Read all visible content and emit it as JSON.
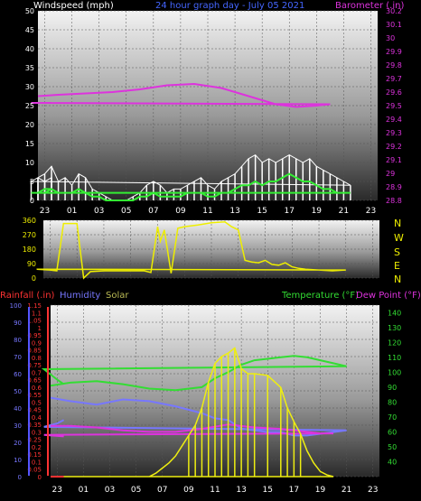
{
  "header": {
    "left_label": "Windspeed (mph)",
    "title": "24 hour graph day - July 05 2021",
    "right_label": "Barometer (.in)"
  },
  "bottom_header": {
    "rain": "Rainfall (.in)",
    "humidity": "Humidity",
    "solar": "Solar",
    "temperature": "Temperature (°F)",
    "dewpoint": "Dew Point (°F)"
  },
  "colors": {
    "windspeed": "#ffffff",
    "gust_avg": "#33ee33",
    "barometer": "#dd33dd",
    "direction": "#eeee00",
    "rain": "#ff3333",
    "humidity": "#7777ff",
    "solar": "#eeee11",
    "temperature": "#33dd33",
    "dewpoint": "#dd33dd",
    "compass": "#eeee00"
  },
  "compass_labels": [
    "N",
    "W",
    "S",
    "E",
    "N"
  ],
  "chart_data": [
    {
      "type": "line",
      "name": "wind-barometer",
      "title": "24 hour graph day - July 05 2021",
      "x_ticks": [
        "23",
        "01",
        "03",
        "05",
        "07",
        "09",
        "11",
        "13",
        "15",
        "17",
        "19",
        "21",
        "23"
      ],
      "ylabel": "Windspeed (mph)",
      "ylim": [
        0,
        50
      ],
      "y_ticks": [
        0,
        5,
        10,
        15,
        20,
        25,
        30,
        35,
        40,
        45,
        50
      ],
      "y2label": "Barometer (.in)",
      "y2lim": [
        28.8,
        30.2
      ],
      "y2_ticks": [
        "28.8",
        "28.9",
        "29",
        "29.1",
        "29.2",
        "29.3",
        "29.4",
        "29.5",
        "29.6",
        "29.7",
        "29.8",
        "29.9",
        "30",
        "30.1",
        "30.2"
      ],
      "grid": true,
      "series": [
        {
          "name": "Barometer (.in)",
          "axis": "right",
          "x": [
            22.5,
            0,
            2,
            4,
            6,
            8,
            10,
            12,
            14,
            16,
            17.5,
            19,
            20,
            22,
            23.5
          ],
          "y": [
            29.57,
            29.58,
            29.59,
            29.6,
            29.62,
            29.65,
            29.66,
            29.63,
            29.57,
            29.51,
            29.49,
            29.5,
            29.51,
            29.52,
            29.52
          ]
        },
        {
          "name": "Windspeed (mph)",
          "axis": "left",
          "x": [
            22.5,
            23,
            23.5,
            0,
            0.5,
            1,
            1.5,
            2,
            2.5,
            3,
            3.5,
            4,
            4.5,
            5,
            5.5,
            6,
            6.5,
            7,
            7.5,
            8,
            8.5,
            9,
            9.5,
            10,
            10.5,
            11,
            11.5,
            12,
            12.5,
            13,
            13.5,
            14,
            14.5,
            15,
            15.5,
            16,
            16.5,
            17,
            17.5,
            18,
            18.5,
            19,
            19.5,
            20,
            20.5,
            21,
            21.5,
            22,
            22.5,
            23,
            23.5
          ],
          "y": [
            6,
            7,
            9,
            5,
            6,
            4,
            7,
            6,
            3,
            2,
            1,
            0,
            0,
            0,
            1,
            2,
            4,
            5,
            4,
            2,
            3,
            3,
            4,
            5,
            6,
            4,
            3,
            5,
            6,
            7,
            9,
            11,
            12,
            10,
            11,
            10,
            11,
            12,
            11,
            10,
            11,
            9,
            8,
            7,
            6,
            5,
            4,
            5,
            6,
            5,
            6
          ]
        },
        {
          "name": "Average",
          "axis": "left",
          "x": [
            22.5,
            23,
            23.5,
            0,
            0.5,
            1,
            1.5,
            2,
            2.5,
            3,
            3.5,
            4,
            4.5,
            5,
            5.5,
            6,
            6.5,
            7,
            7.5,
            8,
            8.5,
            9,
            9.5,
            10,
            10.5,
            11,
            11.5,
            12,
            12.5,
            13,
            13.5,
            14,
            14.5,
            15,
            15.5,
            16,
            16.5,
            17,
            17.5,
            18,
            18.5,
            19,
            19.5,
            20,
            20.5,
            21,
            21.5,
            22,
            22.5,
            23,
            23.5
          ],
          "y": [
            2,
            3,
            3,
            2,
            2,
            2,
            3,
            2,
            1,
            1,
            0,
            0,
            0,
            0,
            0,
            1,
            1,
            2,
            1,
            1,
            1,
            1,
            2,
            2,
            2,
            1,
            1,
            2,
            2,
            3,
            4,
            4,
            5,
            4,
            5,
            5,
            6,
            7,
            6,
            5,
            5,
            4,
            3,
            3,
            2,
            2,
            2,
            2,
            2,
            2,
            3
          ]
        }
      ]
    },
    {
      "type": "line",
      "name": "wind-direction",
      "x_ticks": [
        "23",
        "01",
        "03",
        "05",
        "07",
        "09",
        "11",
        "13",
        "15",
        "17",
        "19",
        "21",
        "23"
      ],
      "ylim": [
        0,
        360
      ],
      "y_ticks": [
        0,
        90,
        180,
        270,
        360
      ],
      "grid": true,
      "series": [
        {
          "name": "Direction",
          "x": [
            22.5,
            23,
            23.5,
            0,
            0.5,
            1,
            1.5,
            2,
            3,
            4,
            5,
            6,
            6.5,
            7,
            7.2,
            7.5,
            8,
            8.5,
            9,
            10,
            11,
            12,
            12.5,
            13,
            13.5,
            14,
            14.5,
            15,
            15.5,
            16,
            16.5,
            17,
            17.5,
            18,
            19,
            20,
            21,
            22,
            23,
            23.5
          ],
          "y": [
            55,
            50,
            45,
            340,
            340,
            340,
            0,
            40,
            45,
            45,
            45,
            45,
            35,
            320,
            230,
            300,
            30,
            310,
            320,
            330,
            345,
            350,
            320,
            300,
            110,
            100,
            95,
            110,
            85,
            80,
            95,
            70,
            60,
            55,
            50,
            45,
            50,
            55,
            50,
            55
          ]
        }
      ]
    },
    {
      "type": "line",
      "name": "temperature-humidity",
      "x_ticks": [
        "23",
        "01",
        "03",
        "05",
        "07",
        "09",
        "11",
        "13",
        "15",
        "17",
        "19",
        "21",
        "23"
      ],
      "ylim": [
        0,
        100
      ],
      "y_ticks": [
        0,
        10,
        20,
        30,
        40,
        50,
        60,
        70,
        80,
        90,
        100
      ],
      "rain_ticks": [
        "0",
        "0.05",
        "0.1",
        "0.15",
        "0.2",
        "0.25",
        "0.3",
        "0.35",
        "0.4",
        "0.45",
        "0.5",
        "0.55",
        "0.6",
        "0.65",
        "0.7",
        "0.75",
        "0.8",
        "0.85",
        "0.9",
        "0.95",
        "1",
        "1.05",
        "1.1",
        "1.15"
      ],
      "y2lim": [
        30,
        145
      ],
      "y2_ticks": [
        40,
        50,
        60,
        70,
        80,
        90,
        100,
        110,
        120,
        130,
        140
      ],
      "grid": true,
      "series": [
        {
          "name": "Temperature (°F)",
          "axis": "right",
          "x": [
            22.5,
            0,
            2,
            4,
            6,
            8,
            10,
            11,
            12,
            13,
            14,
            15,
            16,
            17,
            18,
            19,
            20,
            21,
            22,
            23,
            23.5
          ],
          "y": [
            91,
            93,
            94,
            92,
            89,
            88,
            90,
            96,
            100,
            105,
            108,
            109,
            110,
            111,
            110,
            108,
            106,
            104,
            102,
            95,
            92
          ]
        },
        {
          "name": "Dew Point (°F)",
          "axis": "right",
          "x": [
            22.5,
            0,
            2,
            4,
            6,
            8,
            10,
            12,
            14,
            16,
            17,
            18,
            19,
            20,
            22,
            23.5
          ],
          "y": [
            64,
            64,
            63,
            61,
            60,
            60,
            62,
            65,
            63,
            62,
            61,
            60,
            59,
            59,
            58,
            57
          ]
        },
        {
          "name": "Humidity",
          "axis": "left",
          "x": [
            22.5,
            0,
            2,
            4,
            6,
            8,
            10,
            11,
            12,
            13,
            14,
            15,
            16,
            17,
            18,
            19,
            20,
            21,
            22,
            23,
            23.5
          ],
          "y": [
            46,
            44,
            42,
            45,
            44,
            41,
            37,
            34,
            33,
            28,
            27,
            26,
            26,
            24,
            24,
            25,
            26,
            27,
            29,
            31,
            33
          ]
        },
        {
          "name": "Solar",
          "axis": "left",
          "x": [
            22.5,
            5,
            6,
            6.5,
            7,
            7.5,
            8,
            8.5,
            9,
            9.5,
            10,
            10.5,
            11,
            11.5,
            12,
            12.5,
            13,
            13.5,
            14,
            15,
            16,
            16.5,
            17,
            17.5,
            18,
            18.5,
            19,
            19.5,
            20,
            23.5
          ],
          "y": [
            0,
            0,
            0,
            2,
            5,
            8,
            12,
            18,
            24,
            30,
            40,
            55,
            66,
            70,
            72,
            75,
            63,
            60,
            60,
            59,
            52,
            40,
            32,
            25,
            15,
            8,
            3,
            1,
            0,
            0
          ]
        },
        {
          "name": "Rainfall (.in)",
          "axis": "rain",
          "x": [
            22.5,
            23.5
          ],
          "y": [
            0,
            0
          ]
        }
      ]
    }
  ]
}
